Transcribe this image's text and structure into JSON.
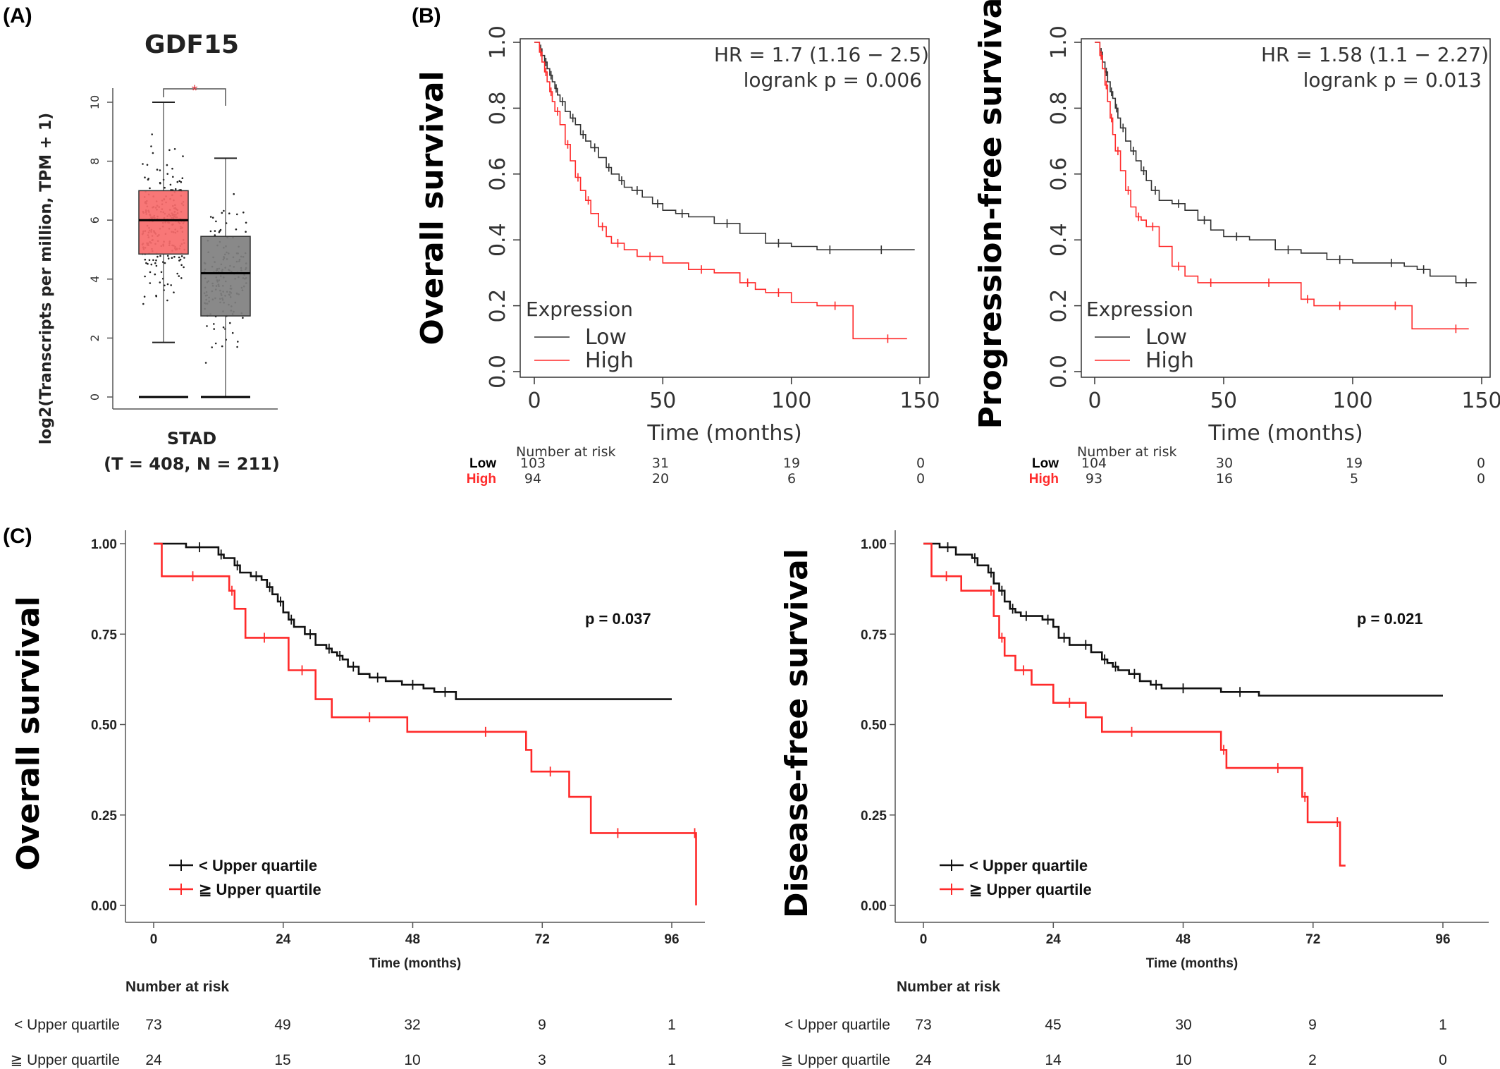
{
  "panels": {
    "a": "(A)",
    "b": "(B)",
    "c": "(C)"
  },
  "colors": {
    "low": "#333333",
    "high": "#ff2a2a",
    "boxTumor": "#f76b6b",
    "boxNormal": "#7f7f7f",
    "sig": "#d9333b"
  },
  "chart_data": [
    {
      "type": "box",
      "panel": "(A)",
      "title": "GDF15",
      "ylabel": "log2(Transcripts per million, TPM + 1)",
      "ylim": [
        0,
        10.5
      ],
      "yticks": [
        "0",
        "2",
        "4",
        "6",
        "8",
        "10"
      ],
      "category": "STAD",
      "subtitle": "(T = 408, N = 211)",
      "significance": "*",
      "groups": [
        {
          "q1": 4.85,
          "median": 6.0,
          "q3": 7.0,
          "wlo": 1.85,
          "whi": 10.0,
          "color": "#f76b6b"
        },
        {
          "q1": 2.75,
          "median": 4.2,
          "q3": 5.45,
          "wlo": 0.0,
          "whi": 8.1,
          "color": "#7f7f7f"
        }
      ]
    },
    {
      "type": "line",
      "panel": "(B)",
      "ylabel": "Overall survival",
      "xlabel": "Time (months)",
      "xlim": [
        0,
        150
      ],
      "ylim": [
        0,
        1
      ],
      "xticks": [
        "0",
        "50",
        "100",
        "150"
      ],
      "yticks": [
        "0.0",
        "0.2",
        "0.4",
        "0.6",
        "0.8",
        "1.0"
      ],
      "hr": "HR = 1.7 (1.16 − 2.5)",
      "logrank": "logrank p = 0.006",
      "legend_title": "Expression",
      "legend": [
        "Low",
        "High"
      ],
      "series": [
        {
          "name": "Low",
          "x": [
            0,
            2,
            3,
            4,
            5,
            6,
            7,
            8,
            9,
            10,
            12,
            14,
            16,
            18,
            20,
            22,
            25,
            28,
            30,
            33,
            35,
            38,
            42,
            46,
            50,
            55,
            60,
            70,
            80,
            90,
            100,
            110,
            120,
            130,
            140,
            148
          ],
          "y": [
            1.0,
            0.98,
            0.96,
            0.94,
            0.92,
            0.9,
            0.88,
            0.86,
            0.84,
            0.82,
            0.79,
            0.77,
            0.75,
            0.72,
            0.7,
            0.68,
            0.65,
            0.62,
            0.6,
            0.58,
            0.56,
            0.55,
            0.53,
            0.51,
            0.49,
            0.48,
            0.47,
            0.45,
            0.42,
            0.39,
            0.38,
            0.37,
            0.37,
            0.37,
            0.37,
            0.37
          ]
        },
        {
          "name": "High",
          "x": [
            0,
            2,
            3,
            4,
            5,
            6,
            7,
            8,
            10,
            12,
            14,
            16,
            18,
            20,
            22,
            25,
            28,
            30,
            35,
            40,
            50,
            60,
            70,
            80,
            86,
            90,
            100,
            110,
            124,
            130,
            145
          ],
          "y": [
            1.0,
            0.97,
            0.94,
            0.91,
            0.88,
            0.85,
            0.82,
            0.79,
            0.75,
            0.69,
            0.64,
            0.59,
            0.55,
            0.52,
            0.48,
            0.44,
            0.41,
            0.39,
            0.37,
            0.35,
            0.33,
            0.31,
            0.3,
            0.27,
            0.25,
            0.24,
            0.21,
            0.2,
            0.1,
            0.1,
            0.1
          ]
        }
      ],
      "risk": {
        "header": "Number at risk",
        "low_label": "Low",
        "high_label": "High",
        "low": [
          "103",
          "31",
          "19",
          "0"
        ],
        "high": [
          "94",
          "20",
          "6",
          "0"
        ]
      }
    },
    {
      "type": "line",
      "panel": "(B)",
      "ylabel": "Progression-free survival",
      "xlabel": "Time (months)",
      "xlim": [
        0,
        150
      ],
      "ylim": [
        0,
        1
      ],
      "xticks": [
        "0",
        "50",
        "100",
        "150"
      ],
      "yticks": [
        "0.0",
        "0.2",
        "0.4",
        "0.6",
        "0.8",
        "1.0"
      ],
      "hr": "HR = 1.58 (1.1 − 2.27)",
      "logrank": "logrank p = 0.013",
      "legend_title": "Expression",
      "legend": [
        "Low",
        "High"
      ],
      "series": [
        {
          "name": "Low",
          "x": [
            0,
            2,
            3,
            4,
            5,
            6,
            7,
            8,
            9,
            10,
            12,
            14,
            16,
            18,
            20,
            22,
            25,
            30,
            35,
            40,
            45,
            50,
            60,
            70,
            80,
            90,
            100,
            110,
            120,
            125,
            130,
            140,
            148
          ],
          "y": [
            1.0,
            0.97,
            0.94,
            0.91,
            0.88,
            0.85,
            0.83,
            0.8,
            0.77,
            0.74,
            0.7,
            0.67,
            0.64,
            0.61,
            0.58,
            0.55,
            0.52,
            0.51,
            0.49,
            0.46,
            0.43,
            0.41,
            0.4,
            0.37,
            0.36,
            0.34,
            0.33,
            0.33,
            0.32,
            0.31,
            0.29,
            0.27,
            0.27
          ]
        },
        {
          "name": "High",
          "x": [
            0,
            2,
            3,
            4,
            5,
            6,
            7,
            8,
            10,
            12,
            14,
            16,
            18,
            20,
            25,
            30,
            35,
            40,
            50,
            60,
            75,
            80,
            85,
            90,
            100,
            110,
            123,
            135,
            145
          ],
          "y": [
            1.0,
            0.96,
            0.92,
            0.87,
            0.82,
            0.77,
            0.72,
            0.67,
            0.61,
            0.55,
            0.5,
            0.47,
            0.46,
            0.44,
            0.38,
            0.32,
            0.29,
            0.27,
            0.27,
            0.27,
            0.27,
            0.22,
            0.2,
            0.2,
            0.2,
            0.2,
            0.13,
            0.13,
            0.13
          ]
        }
      ],
      "risk": {
        "header": "Number at risk",
        "low_label": "Low",
        "high_label": "High",
        "low": [
          "104",
          "30",
          "19",
          "0"
        ],
        "high": [
          "93",
          "16",
          "5",
          "0"
        ]
      }
    },
    {
      "type": "line",
      "panel": "(C)",
      "ylabel": "Overall survival",
      "xlabel": "Time (months)",
      "xlim": [
        0,
        100
      ],
      "ylim": [
        0,
        1
      ],
      "xticks": [
        "0",
        "24",
        "48",
        "72",
        "96"
      ],
      "yticks": [
        "0.00",
        "0.25",
        "0.50",
        "0.75",
        "1.00"
      ],
      "pvalue": "p = 0.037",
      "legend": [
        "< Upper quartile",
        "≧ Upper quartile"
      ],
      "series": [
        {
          "name": "< Upper quartile",
          "x": [
            0,
            6,
            11,
            12,
            13,
            15,
            16,
            18,
            20,
            21,
            22,
            23,
            24,
            25,
            26,
            28,
            30,
            32,
            33,
            34,
            35,
            36,
            38,
            40,
            43,
            46,
            50,
            52,
            56,
            96
          ],
          "y": [
            1.0,
            0.99,
            0.99,
            0.97,
            0.96,
            0.94,
            0.92,
            0.91,
            0.9,
            0.88,
            0.86,
            0.84,
            0.81,
            0.79,
            0.77,
            0.75,
            0.72,
            0.71,
            0.7,
            0.69,
            0.68,
            0.66,
            0.64,
            0.63,
            0.62,
            0.61,
            0.6,
            0.59,
            0.57,
            0.57
          ]
        },
        {
          "name": "≧ Upper quartile",
          "x": [
            0,
            1.5,
            13,
            14,
            15,
            17,
            24,
            25,
            30,
            33,
            47,
            54,
            69,
            70,
            77,
            81,
            91,
            100,
            100.5
          ],
          "y": [
            1.0,
            0.91,
            0.91,
            0.87,
            0.82,
            0.74,
            0.74,
            0.65,
            0.57,
            0.52,
            0.48,
            0.48,
            0.43,
            0.37,
            0.3,
            0.2,
            0.2,
            0.2,
            0.0
          ]
        }
      ],
      "risk": {
        "header": "Number at risk",
        "low_label": "< Upper quartile",
        "high_label": "≧ Upper quartile",
        "low": [
          "73",
          "49",
          "32",
          "9",
          "1"
        ],
        "high": [
          "24",
          "15",
          "10",
          "3",
          "1"
        ]
      }
    },
    {
      "type": "line",
      "panel": "(C)",
      "ylabel": "Disease-free survival",
      "xlabel": "Time (months)",
      "xlim": [
        0,
        100
      ],
      "ylim": [
        0,
        1
      ],
      "xticks": [
        "0",
        "24",
        "48",
        "72",
        "96"
      ],
      "yticks": [
        "0.00",
        "0.25",
        "0.50",
        "0.75",
        "1.00"
      ],
      "pvalue": "p = 0.021",
      "legend": [
        "< Upper quartile",
        "≧ Upper quartile"
      ],
      "series": [
        {
          "name": "< Upper quartile",
          "x": [
            0,
            3,
            6,
            9,
            10,
            12,
            13,
            14,
            15,
            16,
            17,
            18,
            20,
            22,
            24,
            25,
            27,
            29,
            31,
            33,
            34,
            35,
            36,
            38,
            40,
            42,
            44,
            46,
            50,
            55,
            62,
            96
          ],
          "y": [
            1.0,
            0.99,
            0.97,
            0.96,
            0.94,
            0.92,
            0.89,
            0.87,
            0.84,
            0.82,
            0.81,
            0.8,
            0.8,
            0.79,
            0.77,
            0.74,
            0.72,
            0.72,
            0.7,
            0.68,
            0.67,
            0.66,
            0.65,
            0.64,
            0.62,
            0.61,
            0.6,
            0.6,
            0.6,
            0.59,
            0.58,
            0.58
          ]
        },
        {
          "name": "≧ Upper quartile",
          "x": [
            0,
            1.5,
            7,
            12,
            13,
            14,
            15,
            17,
            20,
            24,
            30,
            33,
            44,
            55,
            56,
            62,
            69,
            70,
            71,
            76,
            77,
            78
          ],
          "y": [
            1.0,
            0.91,
            0.87,
            0.87,
            0.8,
            0.74,
            0.69,
            0.65,
            0.61,
            0.56,
            0.52,
            0.48,
            0.48,
            0.43,
            0.38,
            0.38,
            0.38,
            0.3,
            0.23,
            0.23,
            0.11,
            0.11
          ]
        }
      ],
      "risk": {
        "header": "Number at risk",
        "low_label": "< Upper quartile",
        "high_label": "≧ Upper quartile",
        "low": [
          "73",
          "45",
          "30",
          "9",
          "1"
        ],
        "high": [
          "24",
          "14",
          "10",
          "2",
          "0"
        ]
      }
    }
  ]
}
